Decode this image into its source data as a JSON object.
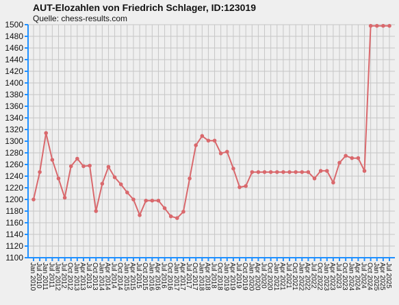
{
  "title": "AUT-Elozahlen von Friedrich Schlager, ID:123019",
  "source": "Quelle: chess-results.com",
  "chart_data": {
    "type": "line",
    "title": "AUT-Elozahlen von Friedrich Schlager, ID:123019",
    "xlabel": "",
    "ylabel": "",
    "ylim": [
      1100,
      1500
    ],
    "yticks": [
      1100,
      1120,
      1140,
      1160,
      1180,
      1200,
      1220,
      1240,
      1260,
      1280,
      1300,
      1320,
      1340,
      1360,
      1380,
      1400,
      1420,
      1440,
      1460,
      1480,
      1500
    ],
    "grid": true,
    "line_color": "#d9686c",
    "grid_color": "#c6c6c6",
    "axis_color": "#1e8fff",
    "categories": [
      "Jan 2010",
      "Jul 2010",
      "Jan 2011",
      "Jul 2011",
      "Jan 2012",
      "Jul 2012",
      "Oct 2012",
      "Jan 2013",
      "Apr 2013",
      "Jul 2013",
      "Oct 2013",
      "Jan 2014",
      "Apr 2014",
      "Jul 2014",
      "Oct 2014",
      "Jan 2015",
      "Apr 2015",
      "Jul 2015",
      "Oct 2015",
      "Jan 2016",
      "Apr 2016",
      "Jul 2016",
      "Oct 2016",
      "Jan 2017",
      "Apr 2017",
      "Jul 2017",
      "Oct 2017",
      "Jan 2018",
      "Apr 2018",
      "Jul 2018",
      "Oct 2018",
      "Jan 2019",
      "Apr 2019",
      "Jul 2019",
      "Oct 2019",
      "Jan 2020",
      "Apr 2020",
      "Jul 2020",
      "Oct 2020",
      "Jan 2021",
      "Apr 2021",
      "Jul 2021",
      "Oct 2021",
      "Jan 2022",
      "Apr 2022",
      "Jul 2022",
      "Oct 2022",
      "Jan 2023",
      "Apr 2023",
      "Jul 2023",
      "Oct 2023",
      "Jan 2024",
      "Apr 2024",
      "Jul 2024",
      "Oct 2024",
      "Jan 2025",
      "Apr 2025",
      "Jul 2025"
    ],
    "series": [
      {
        "values": [
          1200,
          1247,
          1314,
          1268,
          1236,
          1203,
          1257,
          1270,
          1257,
          1258,
          1180,
          1227,
          1256,
          1238,
          1226,
          1212,
          1200,
          1173,
          1198,
          1198,
          1198,
          1185,
          1171,
          1168,
          1179,
          1236,
          1293,
          1309,
          1301,
          1301,
          1279,
          1282,
          1253,
          1221,
          1223,
          1247,
          1247,
          1247,
          1247,
          1247,
          1247,
          1247,
          1247,
          1247,
          1247,
          1236,
          1249,
          1249,
          1229,
          1263,
          1275,
          1271,
          1271,
          1249,
          1498,
          1498,
          1498,
          1498
        ]
      }
    ]
  }
}
